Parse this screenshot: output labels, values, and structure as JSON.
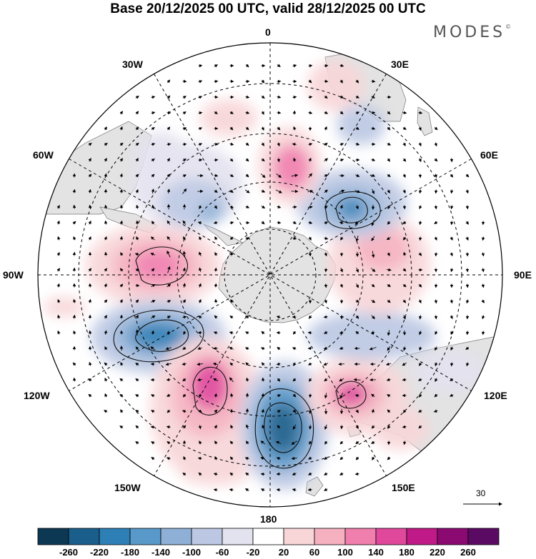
{
  "title": "Base 20/12/2025 00 UTC, valid 28/12/2025 00 UTC",
  "brand": "MODES",
  "brand_mark": "©",
  "map": {
    "projection": "south-polar-stereographic",
    "labels": {
      "top": "0",
      "bottom": "180",
      "left": "90W",
      "right": "90E",
      "w30": "30W",
      "w60": "60W",
      "w120": "120W",
      "w150": "150W",
      "e30": "30E",
      "e60": "60E",
      "e120": "120E",
      "e150": "150E"
    },
    "vector_scale_label": "30"
  },
  "colorbar": {
    "ticks": [
      "-260",
      "-220",
      "-180",
      "-140",
      "-100",
      "-60",
      "-20",
      "20",
      "60",
      "100",
      "140",
      "180",
      "220",
      "260"
    ],
    "colors": [
      "#0d3854",
      "#1a5e8c",
      "#2e7fb6",
      "#5899c9",
      "#8eb0d6",
      "#bcc8e3",
      "#e3e2ef",
      "#ffffff",
      "#f8d6d8",
      "#f5b1c0",
      "#f07fae",
      "#e0489c",
      "#bf1a87",
      "#8b0a72",
      "#5b0a63"
    ]
  },
  "colors": {
    "land": "#e3e3e3",
    "grid": "#000000"
  }
}
